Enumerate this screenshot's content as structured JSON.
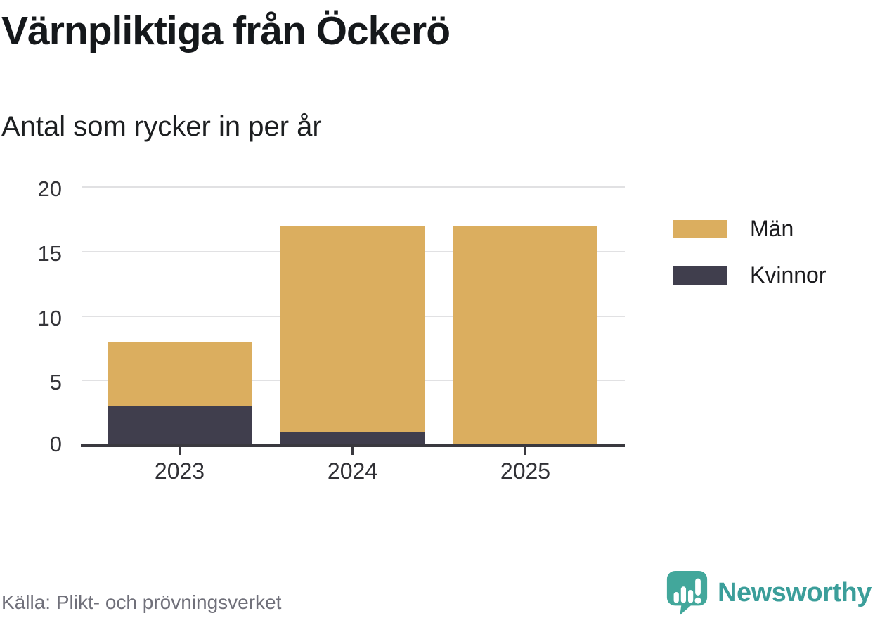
{
  "title": "Värnpliktiga från Öckerö",
  "subtitle": "Antal som rycker in per år",
  "source": "Källa: Plikt- och prövningsverket",
  "brand": {
    "name": "Newsworthy",
    "teal": "#3b9e9a",
    "icon_teal": "#42a79b",
    "icon": "newsworthy-speech-bubble-barchart-icon"
  },
  "colors": {
    "men": "#dbae5f",
    "women": "#403e4d",
    "axis": "#3a393f",
    "grid": "#e1e1e3",
    "tick_text": "#35353a",
    "source_text": "#70707a"
  },
  "chart_data": {
    "type": "bar",
    "stacked": true,
    "title": "Värnpliktiga från Öckerö",
    "subtitle": "Antal som rycker in per år",
    "xlabel": "",
    "ylabel": "",
    "categories": [
      "2023",
      "2024",
      "2025"
    ],
    "series": [
      {
        "name": "Män",
        "color": "#dbae5f",
        "values": [
          5,
          16,
          17
        ]
      },
      {
        "name": "Kvinnor",
        "color": "#403e4d",
        "values": [
          3,
          1,
          0
        ]
      }
    ],
    "stack_totals": [
      8,
      17,
      17
    ],
    "ylim": [
      0,
      20
    ],
    "yticks": [
      0,
      5,
      10,
      15,
      20
    ],
    "grid": true,
    "legend_position": "right",
    "source": "Källa: Plikt- och prövningsverket"
  }
}
